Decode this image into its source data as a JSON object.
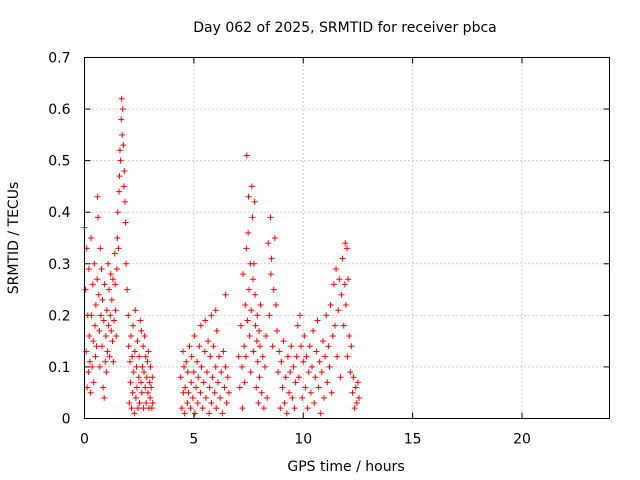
{
  "chart_data": {
    "type": "scatter",
    "title": "Day 062 of 2025, SRMTID for receiver pbca",
    "xlabel": "GPS time / hours",
    "ylabel": "SRMTID / TECUs",
    "xlim": [
      0,
      24
    ],
    "ylim": [
      0,
      0.7
    ],
    "xticks": [
      "0",
      "5",
      "10",
      "15",
      "20"
    ],
    "yticks": [
      "0",
      "0.1",
      "0.2",
      "0.3",
      "0.4",
      "0.5",
      "0.6",
      "0.7"
    ],
    "grid": true,
    "marker": "+",
    "marker_color": "#ff0000",
    "series": [
      {
        "points": [
          [
            0.0,
            0.37
          ],
          [
            0.05,
            0.25
          ],
          [
            0.08,
            0.13
          ],
          [
            0.1,
            0.33
          ],
          [
            0.12,
            0.06
          ],
          [
            0.15,
            0.2
          ],
          [
            0.18,
            0.09
          ],
          [
            0.2,
            0.29
          ],
          [
            0.22,
            0.16
          ],
          [
            0.25,
            0.11
          ],
          [
            0.28,
            0.05
          ],
          [
            0.3,
            0.35
          ],
          [
            0.32,
            0.2
          ],
          [
            0.35,
            0.1
          ],
          [
            0.38,
            0.26
          ],
          [
            0.4,
            0.15
          ],
          [
            0.42,
            0.07
          ],
          [
            0.45,
            0.3
          ],
          [
            0.48,
            0.18
          ],
          [
            0.5,
            0.12
          ],
          [
            0.52,
            0.22
          ],
          [
            0.55,
            0.14
          ],
          [
            0.58,
            0.27
          ],
          [
            0.6,
            0.43
          ],
          [
            0.62,
            0.39
          ],
          [
            0.65,
            0.24
          ],
          [
            0.68,
            0.17
          ],
          [
            0.7,
            0.1
          ],
          [
            0.72,
            0.33
          ],
          [
            0.75,
            0.2
          ],
          [
            0.78,
            0.29
          ],
          [
            0.8,
            0.14
          ],
          [
            0.82,
            0.23
          ],
          [
            0.85,
            0.06
          ],
          [
            0.88,
            0.19
          ],
          [
            0.9,
            0.04
          ],
          [
            0.92,
            0.26
          ],
          [
            0.95,
            0.11
          ],
          [
            0.98,
            0.16
          ],
          [
            1.0,
            0.09
          ],
          [
            1.02,
            0.21
          ],
          [
            1.05,
            0.13
          ],
          [
            1.08,
            0.3
          ],
          [
            1.1,
            0.18
          ],
          [
            1.12,
            0.25
          ],
          [
            1.15,
            0.12
          ],
          [
            1.18,
            0.2
          ],
          [
            1.2,
            0.28
          ],
          [
            1.22,
            0.17
          ],
          [
            1.25,
            0.23
          ],
          [
            1.28,
            0.15
          ],
          [
            1.3,
            0.27
          ],
          [
            1.32,
            0.11
          ],
          [
            1.35,
            0.19
          ],
          [
            1.38,
            0.32
          ],
          [
            1.4,
            0.26
          ],
          [
            1.42,
            0.21
          ],
          [
            1.45,
            0.16
          ],
          [
            1.48,
            0.29
          ],
          [
            1.5,
            0.35
          ],
          [
            1.52,
            0.4
          ],
          [
            1.55,
            0.33
          ],
          [
            1.58,
            0.44
          ],
          [
            1.6,
            0.47
          ],
          [
            1.62,
            0.52
          ],
          [
            1.65,
            0.5
          ],
          [
            1.68,
            0.58
          ],
          [
            1.7,
            0.62
          ],
          [
            1.72,
            0.55
          ],
          [
            1.75,
            0.6
          ],
          [
            1.78,
            0.53
          ],
          [
            1.8,
            0.45
          ],
          [
            1.82,
            0.48
          ],
          [
            1.85,
            0.42
          ],
          [
            1.88,
            0.38
          ],
          [
            1.9,
            0.3
          ],
          [
            1.95,
            0.25
          ],
          [
            2.0,
            0.2
          ],
          [
            2.02,
            0.14
          ],
          [
            2.05,
            0.03
          ],
          [
            2.08,
            0.11
          ],
          [
            2.1,
            0.07
          ],
          [
            2.12,
            0.16
          ],
          [
            2.15,
            0.02
          ],
          [
            2.18,
            0.12
          ],
          [
            2.2,
            0.05
          ],
          [
            2.22,
            0.18
          ],
          [
            2.25,
            0.09
          ],
          [
            2.28,
            0.01
          ],
          [
            2.3,
            0.13
          ],
          [
            2.32,
            0.21
          ],
          [
            2.35,
            0.04
          ],
          [
            2.38,
            0.1
          ],
          [
            2.4,
            0.06
          ],
          [
            2.42,
            0.15
          ],
          [
            2.45,
            0.02
          ],
          [
            2.48,
            0.08
          ],
          [
            2.5,
            0.12
          ],
          [
            2.52,
            0.03
          ],
          [
            2.55,
            0.19
          ],
          [
            2.58,
            0.07
          ],
          [
            2.6,
            0.17
          ],
          [
            2.62,
            0.05
          ],
          [
            2.65,
            0.1
          ],
          [
            2.68,
            0.14
          ],
          [
            2.7,
            0.02
          ],
          [
            2.72,
            0.09
          ],
          [
            2.75,
            0.16
          ],
          [
            2.78,
            0.06
          ],
          [
            2.8,
            0.12
          ],
          [
            2.82,
            0.03
          ],
          [
            2.85,
            0.08
          ],
          [
            2.88,
            0.11
          ],
          [
            2.9,
            0.05
          ],
          [
            2.92,
            0.13
          ],
          [
            2.95,
            0.02
          ],
          [
            2.98,
            0.07
          ],
          [
            3.0,
            0.04
          ],
          [
            3.02,
            0.1
          ],
          [
            3.05,
            0.06
          ],
          [
            3.08,
            0.02
          ],
          [
            3.1,
            0.08
          ],
          [
            3.12,
            0.03
          ],
          [
            4.4,
            0.08
          ],
          [
            4.45,
            0.02
          ],
          [
            4.5,
            0.13
          ],
          [
            4.52,
            0.05
          ],
          [
            4.55,
            0.1
          ],
          [
            4.58,
            0.01
          ],
          [
            4.6,
            0.06
          ],
          [
            4.65,
            0.11
          ],
          [
            4.7,
            0.03
          ],
          [
            4.72,
            0.09
          ],
          [
            4.75,
            0.05
          ],
          [
            4.8,
            0.14
          ],
          [
            4.85,
            0.02
          ],
          [
            4.88,
            0.07
          ],
          [
            4.9,
            0.12
          ],
          [
            4.95,
            0.04
          ],
          [
            5.0,
            0.09
          ],
          [
            5.02,
            0.16
          ],
          [
            5.05,
            0.01
          ],
          [
            5.1,
            0.06
          ],
          [
            5.15,
            0.11
          ],
          [
            5.18,
            0.03
          ],
          [
            5.2,
            0.08
          ],
          [
            5.25,
            0.14
          ],
          [
            5.3,
            0.05
          ],
          [
            5.32,
            0.18
          ],
          [
            5.35,
            0.1
          ],
          [
            5.4,
            0.02
          ],
          [
            5.45,
            0.07
          ],
          [
            5.5,
            0.13
          ],
          [
            5.52,
            0.19
          ],
          [
            5.55,
            0.04
          ],
          [
            5.6,
            0.09
          ],
          [
            5.65,
            0.15
          ],
          [
            5.7,
            0.01
          ],
          [
            5.72,
            0.06
          ],
          [
            5.75,
            0.12
          ],
          [
            5.8,
            0.03
          ],
          [
            5.85,
            0.08
          ],
          [
            5.9,
            0.14
          ],
          [
            5.95,
            0.05
          ],
          [
            6.0,
            0.1
          ],
          [
            6.02,
            0.02
          ],
          [
            6.05,
            0.17
          ],
          [
            6.1,
            0.07
          ],
          [
            6.15,
            0.12
          ],
          [
            6.2,
            0.04
          ],
          [
            6.25,
            0.09
          ],
          [
            6.3,
            0.01
          ],
          [
            6.35,
            0.13
          ],
          [
            6.4,
            0.06
          ],
          [
            6.45,
            0.1
          ],
          [
            6.5,
            0.03
          ],
          [
            6.55,
            0.08
          ],
          [
            6.6,
            0.05
          ],
          [
            5.8,
            0.2
          ],
          [
            6.0,
            0.21
          ],
          [
            6.45,
            0.24
          ],
          [
            7.05,
            0.12
          ],
          [
            7.1,
            0.06
          ],
          [
            7.15,
            0.18
          ],
          [
            7.2,
            0.1
          ],
          [
            7.22,
            0.02
          ],
          [
            7.25,
            0.28
          ],
          [
            7.3,
            0.14
          ],
          [
            7.32,
            0.07
          ],
          [
            7.35,
            0.22
          ],
          [
            7.38,
            0.12
          ],
          [
            7.4,
            0.33
          ],
          [
            7.42,
            0.51
          ],
          [
            7.45,
            0.19
          ],
          [
            7.48,
            0.36
          ],
          [
            7.5,
            0.43
          ],
          [
            7.52,
            0.25
          ],
          [
            7.55,
            0.16
          ],
          [
            7.58,
            0.3
          ],
          [
            7.6,
            0.09
          ],
          [
            7.62,
            0.21
          ],
          [
            7.65,
            0.45
          ],
          [
            7.68,
            0.39
          ],
          [
            7.7,
            0.27
          ],
          [
            7.72,
            0.13
          ],
          [
            7.75,
            0.3
          ],
          [
            7.78,
            0.42
          ],
          [
            7.8,
            0.24
          ],
          [
            7.82,
            0.18
          ],
          [
            7.85,
            0.06
          ],
          [
            7.88,
            0.15
          ],
          [
            7.9,
            0.2
          ],
          [
            7.92,
            0.11
          ],
          [
            7.95,
            0.03
          ],
          [
            7.98,
            0.17
          ],
          [
            8.0,
            0.08
          ],
          [
            8.02,
            0.14
          ],
          [
            8.05,
            0.22
          ],
          [
            8.1,
            0.05
          ],
          [
            8.15,
            0.12
          ],
          [
            8.2,
            0.02
          ],
          [
            8.25,
            0.1
          ],
          [
            8.3,
            0.16
          ],
          [
            8.35,
            0.04
          ],
          [
            8.4,
            0.34
          ],
          [
            8.45,
            0.2
          ],
          [
            8.5,
            0.39
          ],
          [
            8.52,
            0.28
          ],
          [
            8.55,
            0.31
          ],
          [
            8.6,
            0.14
          ],
          [
            8.65,
            0.25
          ],
          [
            8.7,
            0.35
          ],
          [
            8.75,
            0.22
          ],
          [
            8.8,
            0.17
          ],
          [
            8.85,
            0.09
          ],
          [
            8.9,
            0.13
          ],
          [
            8.95,
            0.02
          ],
          [
            9.0,
            0.11
          ],
          [
            9.05,
            0.06
          ],
          [
            9.1,
            0.15
          ],
          [
            9.15,
            0.03
          ],
          [
            9.2,
            0.08
          ],
          [
            9.25,
            0.01
          ],
          [
            9.3,
            0.12
          ],
          [
            9.35,
            0.05
          ],
          [
            9.4,
            0.09
          ],
          [
            9.45,
            0.14
          ],
          [
            9.5,
            0.04
          ],
          [
            9.55,
            0.1
          ],
          [
            9.6,
            0.02
          ],
          [
            9.65,
            0.07
          ],
          [
            9.7,
            0.12
          ],
          [
            9.75,
            0.18
          ],
          [
            9.8,
            0.08
          ],
          [
            9.85,
            0.2
          ],
          [
            9.9,
            0.14
          ],
          [
            9.95,
            0.04
          ],
          [
            10.0,
            0.11
          ],
          [
            10.05,
            0.16
          ],
          [
            10.1,
            0.06
          ],
          [
            10.15,
            0.12
          ],
          [
            10.2,
            0.02
          ],
          [
            10.25,
            0.09
          ],
          [
            10.3,
            0.14
          ],
          [
            10.35,
            0.05
          ],
          [
            10.4,
            0.1
          ],
          [
            10.45,
            0.17
          ],
          [
            10.5,
            0.03
          ],
          [
            10.55,
            0.08
          ],
          [
            10.6,
            0.13
          ],
          [
            10.65,
            0.19
          ],
          [
            10.7,
            0.06
          ],
          [
            10.75,
            0.11
          ],
          [
            10.8,
            0.01
          ],
          [
            10.85,
            0.09
          ],
          [
            10.9,
            0.15
          ],
          [
            10.95,
            0.04
          ],
          [
            11.0,
            0.12
          ],
          [
            11.05,
            0.2
          ],
          [
            11.1,
            0.07
          ],
          [
            11.15,
            0.14
          ],
          [
            11.2,
            0.1
          ],
          [
            11.25,
            0.22
          ],
          [
            11.3,
            0.05
          ],
          [
            11.35,
            0.16
          ],
          [
            11.4,
            0.26
          ],
          [
            11.45,
            0.18
          ],
          [
            11.5,
            0.29
          ],
          [
            11.55,
            0.12
          ],
          [
            11.6,
            0.21
          ],
          [
            11.65,
            0.27
          ],
          [
            11.7,
            0.08
          ],
          [
            11.75,
            0.24
          ],
          [
            11.8,
            0.31
          ],
          [
            11.85,
            0.18
          ],
          [
            11.9,
            0.26
          ],
          [
            11.92,
            0.34
          ],
          [
            11.95,
            0.22
          ],
          [
            12.0,
            0.33
          ],
          [
            12.02,
            0.12
          ],
          [
            12.05,
            0.27
          ],
          [
            12.1,
            0.16
          ],
          [
            12.15,
            0.09
          ],
          [
            12.2,
            0.14
          ],
          [
            12.25,
            0.05
          ],
          [
            12.3,
            0.08
          ],
          [
            12.35,
            0.02
          ],
          [
            12.4,
            0.06
          ],
          [
            12.45,
            0.03
          ],
          [
            12.5,
            0.07
          ],
          [
            12.55,
            0.04
          ]
        ]
      }
    ]
  }
}
